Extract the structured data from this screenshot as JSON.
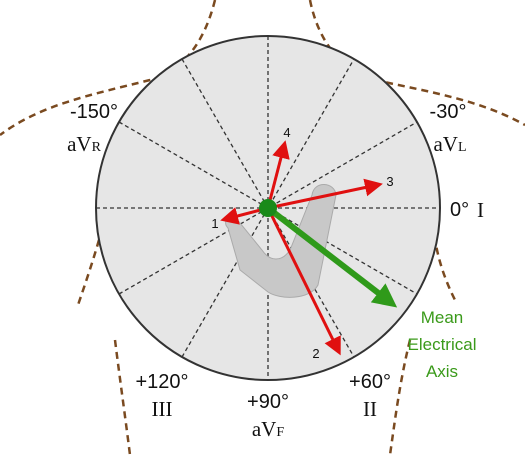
{
  "labels": [
    {
      "angle": "-150°",
      "lead": "aV",
      "lead_sub": "R"
    },
    {
      "angle": "-30°",
      "lead": "aV",
      "lead_sub": "L"
    },
    {
      "angle": "0°",
      "lead": "I"
    },
    {
      "angle": "+60°",
      "lead": "II"
    },
    {
      "angle": "+90°",
      "lead": "aV",
      "lead_sub": "F"
    },
    {
      "angle": "+120°",
      "lead": "III"
    }
  ],
  "vectors": [
    "1",
    "2",
    "3",
    "4"
  ],
  "mean_axis": [
    "Mean",
    "Electrical",
    "Axis"
  ]
}
